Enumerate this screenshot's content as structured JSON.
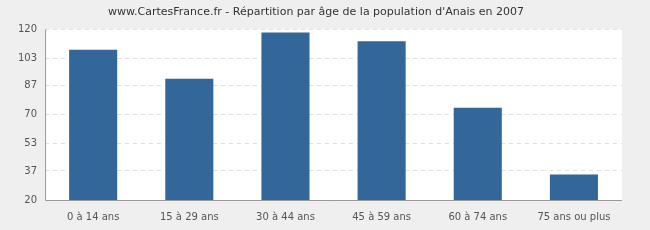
{
  "chart_data": {
    "type": "bar",
    "title": "www.CartesFrance.fr - Répartition par âge de la population d'Anais en 2007",
    "categories": [
      "0 à 14 ans",
      "15 à 29 ans",
      "30 à 44 ans",
      "45 à 59 ans",
      "60 à 74 ans",
      "75 ans ou plus"
    ],
    "values": [
      108,
      91,
      118,
      113,
      74,
      35
    ],
    "color": "#336699",
    "ylim": [
      20,
      120
    ],
    "yticks": [
      20,
      37,
      53,
      70,
      87,
      103,
      120
    ],
    "grid": true
  }
}
